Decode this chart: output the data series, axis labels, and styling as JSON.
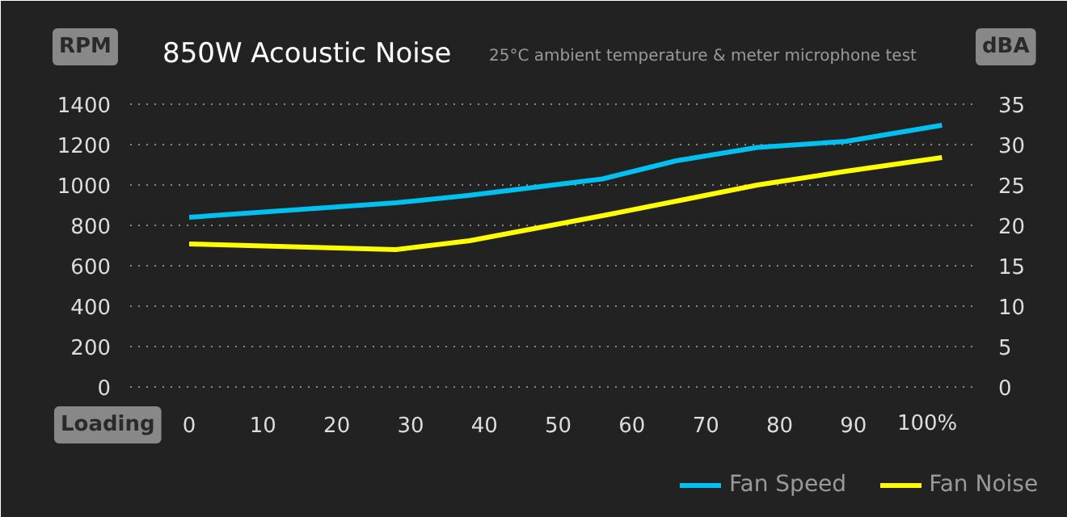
{
  "chart_data": {
    "type": "line",
    "title": "850W Acoustic Noise",
    "subtitle": "25°C ambient temperature & meter microphone test",
    "xlabel": "Loading",
    "ylabel": "RPM",
    "y2label": "dBA",
    "xlim": [
      -8,
      107
    ],
    "xticks": [
      0,
      10,
      20,
      30,
      40,
      50,
      60,
      70,
      80,
      90,
      {
        "value": 100,
        "label": "100%"
      }
    ],
    "ylim": [
      0,
      1400
    ],
    "yticks": [
      0,
      200,
      400,
      600,
      800,
      1000,
      1200,
      1400
    ],
    "y2lim": [
      0,
      35
    ],
    "y2ticks": [
      0,
      5,
      10,
      15,
      20,
      25,
      30,
      35
    ],
    "grid": "y",
    "legend": "bottom right",
    "line_style": "solid",
    "x": [
      0,
      28,
      38,
      56,
      66,
      77,
      89,
      102
    ],
    "series": [
      {
        "name": "Fan Speed",
        "color": "#00c0f0",
        "values": [
          840,
          912,
          949,
          1030,
          1120,
          1186,
          1216,
          1296
        ]
      },
      {
        "name": "Fan Noise",
        "color": "#ffff00",
        "axis": "y2",
        "values": [
          17.7,
          17.0,
          18.1,
          21.2,
          23.0,
          25.0,
          26.7,
          28.4
        ]
      }
    ]
  }
}
